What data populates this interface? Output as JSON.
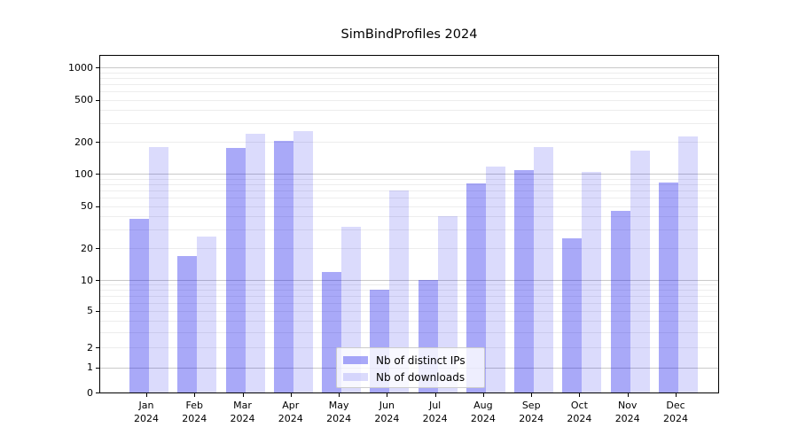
{
  "title": "SimBindProfiles 2024",
  "chart_data": {
    "type": "bar",
    "title": "SimBindProfiles 2024",
    "categories": [
      "Jan",
      "Feb",
      "Mar",
      "Apr",
      "May",
      "Jun",
      "Jul",
      "Aug",
      "Sep",
      "Oct",
      "Nov",
      "Dec"
    ],
    "category_year": "2024",
    "series": [
      {
        "name": "Nb of distinct IPs",
        "color": "rgba(10,10,235,0.35)",
        "color_on_white": "#a9a9f8",
        "values": [
          38,
          17,
          175,
          205,
          12,
          8,
          10,
          82,
          108,
          25,
          45,
          83
        ]
      },
      {
        "name": "Nb of downloads",
        "color": "rgba(10,10,235,0.145)",
        "color_on_white": "#dbdbfc",
        "values": [
          180,
          26,
          240,
          255,
          32,
          70,
          40,
          118,
          180,
          105,
          165,
          225
        ]
      }
    ],
    "yscale": "asinh",
    "asinh_linear_width": 1.76,
    "ylim": [
      0,
      1300
    ],
    "y_ticks": [
      0,
      1,
      2,
      5,
      10,
      20,
      50,
      100,
      200,
      500,
      1000
    ],
    "y_tick_labels": [
      "0",
      "1",
      "2",
      "5",
      "10",
      "20",
      "50",
      "100",
      "200",
      "500",
      "1000"
    ],
    "grid": "both",
    "grid_major_color": "#c9c9c9",
    "grid_minor_color": "#ededed",
    "legend_position": "lower center",
    "xlabel": "",
    "ylabel": ""
  }
}
